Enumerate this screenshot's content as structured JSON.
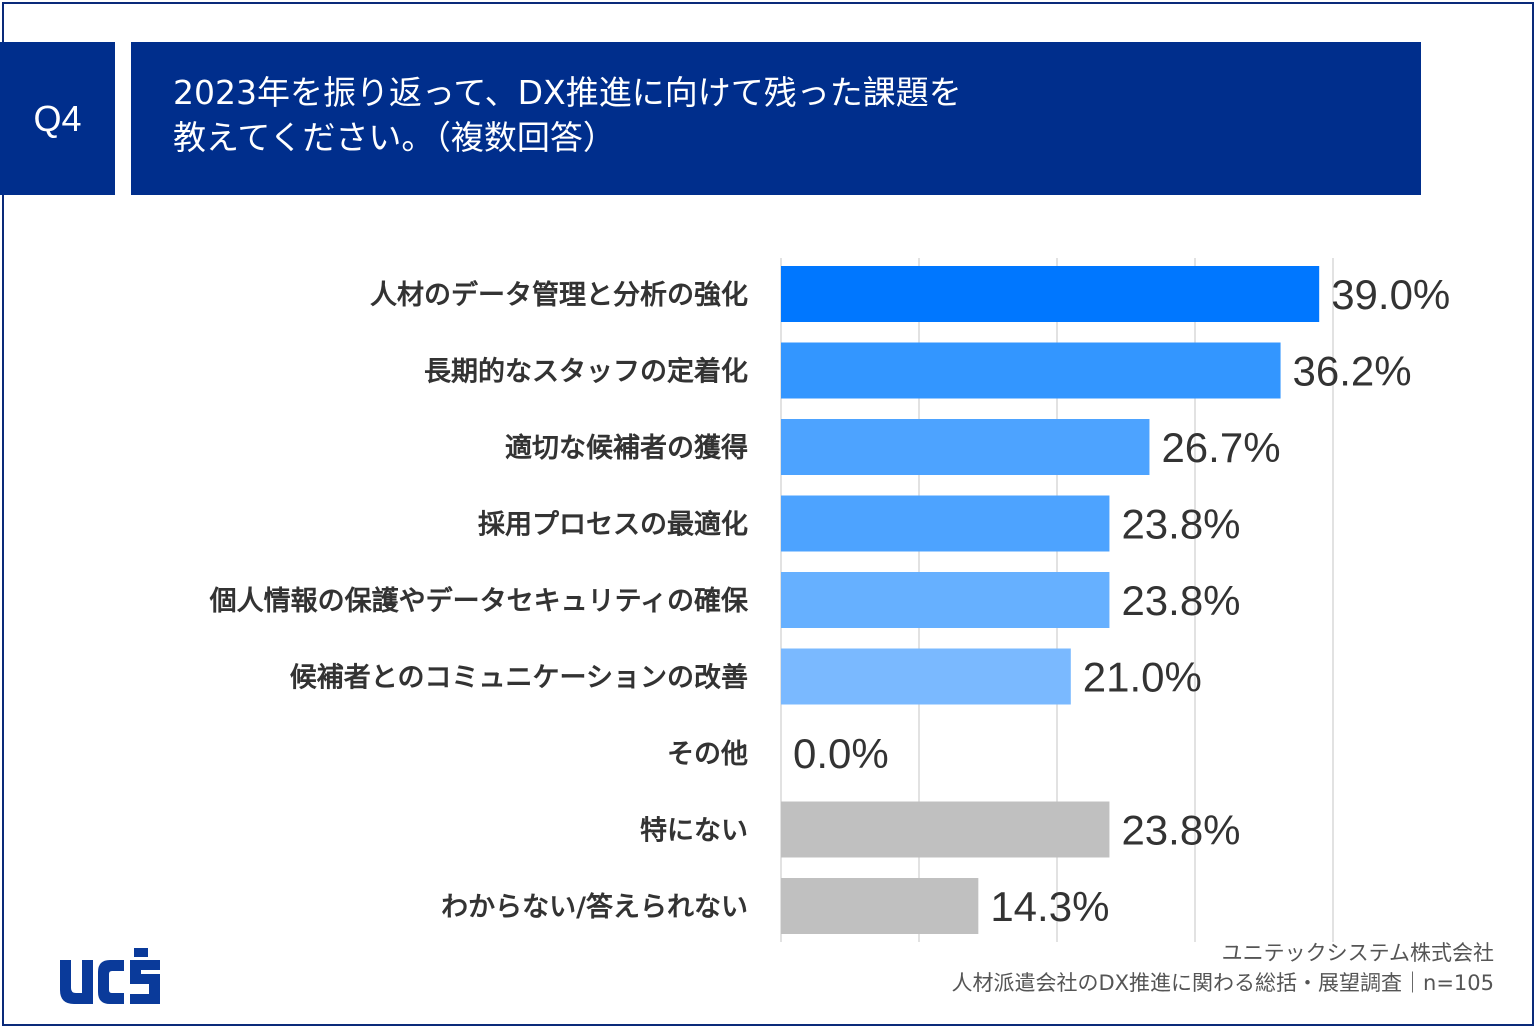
{
  "header": {
    "badge": "Q4",
    "title_line1": "2023年を振り返って、DX推進に向けて残った課題を",
    "title_line2": "教えてください。（複数回答）"
  },
  "chart_data": {
    "type": "bar",
    "orientation": "horizontal",
    "categories": [
      "人材のデータ管理と分析の強化",
      "長期的なスタッフの定着化",
      "適切な候補者の獲得",
      "採用プロセスの最適化",
      "個人情報の保護やデータセキュリティの確保",
      "候補者とのコミュニケーションの改善",
      "その他",
      "特にない",
      "わからない/答えられない"
    ],
    "values": [
      39.0,
      36.2,
      26.7,
      23.8,
      23.8,
      21.0,
      0.0,
      23.8,
      14.3
    ],
    "value_labels": [
      "39.0%",
      "36.2%",
      "26.7%",
      "23.8%",
      "23.8%",
      "21.0%",
      "0.0%",
      "23.8%",
      "14.3%"
    ],
    "bar_colors": [
      "#0077ff",
      "#3396ff",
      "#4da3ff",
      "#4da3ff",
      "#66b0ff",
      "#7ab9ff",
      "#7ab9ff",
      "#c0c0c0",
      "#c0c0c0"
    ],
    "xlim": [
      0,
      40
    ],
    "grid": true
  },
  "footer": {
    "company": "ユニテックシステム株式会社",
    "survey": "人材派遣会社のDX推進に関わる総括・展望調査｜n=105"
  },
  "logo": {
    "text": "ucs",
    "color": "#0a3a9a"
  }
}
